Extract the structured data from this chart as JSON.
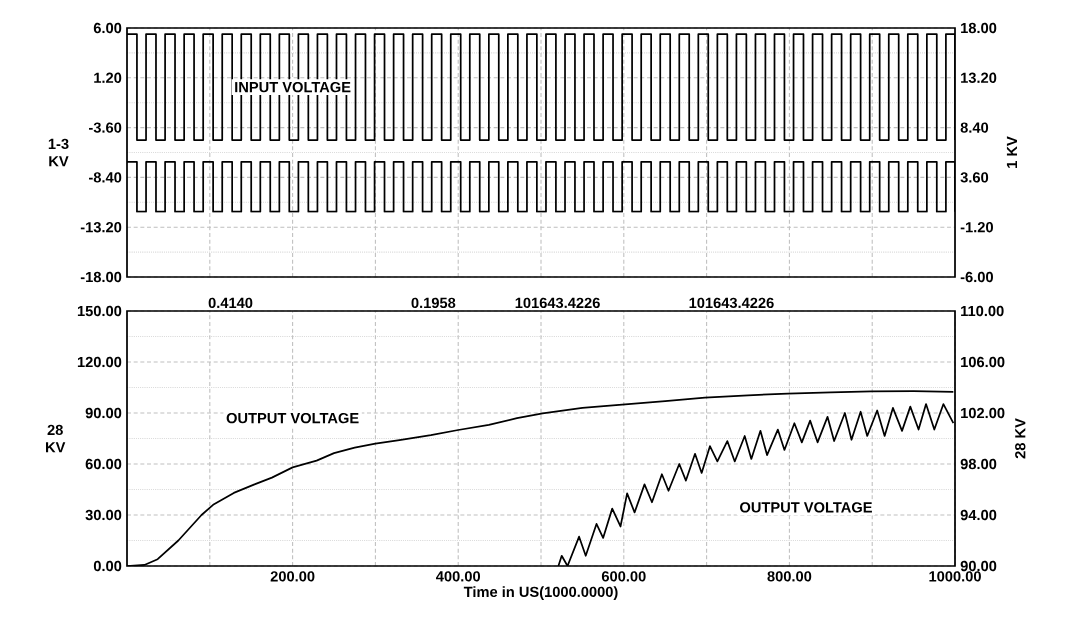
{
  "chart_data": [
    {
      "type": "step",
      "ylabel": "1-3 KV",
      "y2label": "1 KV",
      "annotations": [
        "INPUT VOLTAGE"
      ],
      "xlim": [
        0,
        1000
      ],
      "xticks": [
        {
          "value": 100,
          "label": null
        },
        {
          "value": 200,
          "label": null
        },
        {
          "value": 300,
          "label": null
        },
        {
          "value": 400,
          "label": null
        },
        {
          "value": 500,
          "label": null
        },
        {
          "value": 600,
          "label": null
        },
        {
          "value": 700,
          "label": null
        },
        {
          "value": 800,
          "label": null
        },
        {
          "value": 900,
          "label": null
        }
      ],
      "ylim": [
        -18,
        6
      ],
      "yticks": [
        {
          "value": -18,
          "label": "-18.00"
        },
        {
          "value": -13.2,
          "label": "-13.20"
        },
        {
          "value": -8.4,
          "label": "-8.40"
        },
        {
          "value": -3.6,
          "label": "-3.60"
        },
        {
          "value": 1.2,
          "label": "1.20"
        },
        {
          "value": 6,
          "label": "6.00"
        }
      ],
      "y2lim": [
        -6,
        18
      ],
      "y2ticks": [
        {
          "value": -6,
          "label": "-6.00"
        },
        {
          "value": -1.2,
          "label": "-1.20"
        },
        {
          "value": 3.6,
          "label": "3.60"
        },
        {
          "value": 8.4,
          "label": "8.40"
        },
        {
          "value": 13.2,
          "label": "13.20"
        },
        {
          "value": 18,
          "label": "18.00"
        }
      ],
      "grid": true,
      "tick_labels": "y",
      "x": [
        0,
        12,
        23,
        35,
        46,
        58,
        69,
        81,
        92,
        104,
        115,
        127,
        138,
        150,
        161,
        173,
        184,
        196,
        207,
        219,
        230,
        242,
        253,
        265,
        276,
        288,
        299,
        311,
        322,
        334,
        345,
        357,
        368,
        380,
        391,
        403,
        414,
        426,
        437,
        449,
        460,
        472,
        483,
        495,
        506,
        518,
        529,
        541,
        552,
        564,
        575,
        587,
        598,
        610,
        621,
        633,
        644,
        656,
        667,
        679,
        690,
        702,
        713,
        725,
        736,
        748,
        759,
        771,
        782,
        794,
        805,
        817,
        828,
        840,
        851,
        863,
        874,
        886,
        897,
        909,
        920,
        932,
        943,
        955,
        966,
        978,
        989,
        1000
      ],
      "series": [
        {
          "color": "#000000",
          "axis": "y2",
          "values": [
            17.4,
            7.2,
            17.4,
            7.2,
            17.4,
            7.2,
            17.4,
            7.2,
            17.4,
            7.2,
            17.4,
            7.2,
            17.4,
            7.2,
            17.4,
            7.2,
            17.4,
            7.2,
            17.4,
            7.2,
            17.4,
            7.2,
            17.4,
            7.2,
            17.4,
            7.2,
            17.4,
            7.2,
            17.4,
            7.2,
            17.4,
            7.2,
            17.4,
            7.2,
            17.4,
            7.2,
            17.4,
            7.2,
            17.4,
            7.2,
            17.4,
            7.2,
            17.4,
            7.2,
            17.4,
            7.2,
            17.4,
            7.2,
            17.4,
            7.2,
            17.4,
            7.2,
            17.4,
            7.2,
            17.4,
            7.2,
            17.4,
            7.2,
            17.4,
            7.2,
            17.4,
            7.2,
            17.4,
            7.2,
            17.4,
            7.2,
            17.4,
            7.2,
            17.4,
            7.2,
            17.4,
            7.2,
            17.4,
            7.2,
            17.4,
            7.2,
            17.4,
            7.2,
            17.4,
            7.2,
            17.4,
            7.2,
            17.4,
            7.2,
            17.4,
            7.2,
            17.4,
            7.2
          ]
        },
        {
          "color": "#000000",
          "axis": "y",
          "values": [
            -6.9,
            -11.7,
            -6.9,
            -11.7,
            -6.9,
            -11.7,
            -6.9,
            -11.7,
            -6.9,
            -11.7,
            -6.9,
            -11.7,
            -6.9,
            -11.7,
            -6.9,
            -11.7,
            -6.9,
            -11.7,
            -6.9,
            -11.7,
            -6.9,
            -11.7,
            -6.9,
            -11.7,
            -6.9,
            -11.7,
            -6.9,
            -11.7,
            -6.9,
            -11.7,
            -6.9,
            -11.7,
            -6.9,
            -11.7,
            -6.9,
            -11.7,
            -6.9,
            -11.7,
            -6.9,
            -11.7,
            -6.9,
            -11.7,
            -6.9,
            -11.7,
            -6.9,
            -11.7,
            -6.9,
            -11.7,
            -6.9,
            -11.7,
            -6.9,
            -11.7,
            -6.9,
            -11.7,
            -6.9,
            -11.7,
            -6.9,
            -11.7,
            -6.9,
            -11.7,
            -6.9,
            -11.7,
            -6.9,
            -11.7,
            -6.9,
            -11.7,
            -6.9,
            -11.7,
            -6.9,
            -11.7,
            -6.9,
            -11.7,
            -6.9,
            -11.7,
            -6.9,
            -11.7,
            -6.9,
            -11.7,
            -6.9,
            -11.7,
            -6.9,
            -11.7,
            -6.9,
            -11.7,
            -6.9,
            -11.7,
            -6.9,
            -11.7
          ]
        }
      ]
    },
    {
      "type": "line",
      "xlabel": "Time in US(1000.0000)",
      "ylabel": "28 KV",
      "y2label": "28 KV",
      "annotations": [
        "0.4140",
        "0.1958",
        "101643.4226",
        "101643.4226",
        "OUTPUT VOLTAGE",
        "OUTPUT VOLTAGE"
      ],
      "xlim": [
        0,
        1000
      ],
      "xticks": [
        {
          "value": 100,
          "label": null
        },
        {
          "value": 200,
          "label": "200.00"
        },
        {
          "value": 300,
          "label": null
        },
        {
          "value": 400,
          "label": "400.00"
        },
        {
          "value": 500,
          "label": null
        },
        {
          "value": 600,
          "label": "600.00"
        },
        {
          "value": 700,
          "label": null
        },
        {
          "value": 800,
          "label": "800.00"
        },
        {
          "value": 900,
          "label": null
        },
        {
          "value": 1000,
          "label": "1000.00"
        }
      ],
      "ylim": [
        0,
        150
      ],
      "yticks": [
        {
          "value": 0,
          "label": "0.00"
        },
        {
          "value": 30,
          "label": "30.00"
        },
        {
          "value": 60,
          "label": "60.00"
        },
        {
          "value": 90,
          "label": "90.00"
        },
        {
          "value": 120,
          "label": "120.00"
        },
        {
          "value": 150,
          "label": "150.00"
        }
      ],
      "y2lim": [
        90,
        110
      ],
      "y2ticks": [
        {
          "value": 90,
          "label": "90.00"
        },
        {
          "value": 94,
          "label": "94.00"
        },
        {
          "value": 98,
          "label": "98.00"
        },
        {
          "value": 102,
          "label": "102.00"
        },
        {
          "value": 106,
          "label": "106.00"
        },
        {
          "value": 110,
          "label": "110.00"
        }
      ],
      "grid": true,
      "series": [
        {
          "color": "#000000",
          "axis": "y",
          "x": [
            0,
            21,
            37,
            62,
            90,
            104,
            129,
            154,
            175,
            200,
            229,
            250,
            275,
            300,
            329,
            367,
            400,
            437,
            471,
            502,
            550,
            598,
            650,
            698,
            750,
            798,
            850,
            899,
            950,
            998
          ],
          "values": [
            0,
            0.6,
            4,
            15,
            30,
            36,
            43,
            48,
            52,
            58,
            62,
            66.4,
            69.6,
            72,
            74,
            77,
            80,
            83,
            87,
            89.8,
            93,
            94.9,
            97,
            99,
            100.4,
            101.4,
            102.1,
            102.7,
            102.8,
            102.4
          ]
        },
        {
          "color": "#000000",
          "axis": "y2",
          "x": [
            521,
            525,
            532,
            546,
            554,
            567,
            575,
            586,
            596,
            604,
            613,
            625,
            634,
            646,
            654,
            667,
            675,
            686,
            694,
            704,
            713,
            725,
            734,
            746,
            754,
            765,
            773,
            786,
            794,
            806,
            815,
            825,
            834,
            846,
            854,
            867,
            875,
            886,
            894,
            906,
            915,
            925,
            936,
            946,
            956,
            965,
            975,
            986,
            998
          ],
          "values": [
            90,
            90.8,
            90,
            92.3,
            90.8,
            93.3,
            92.2,
            94.5,
            93.1,
            95.7,
            94.2,
            96.4,
            95,
            97.2,
            95.9,
            98,
            96.7,
            98.8,
            97.3,
            99.4,
            98.2,
            99.8,
            98.2,
            100.2,
            98.4,
            100.6,
            98.7,
            100.7,
            99.1,
            101.2,
            99.7,
            101.4,
            99.7,
            101.7,
            99.8,
            102,
            99.9,
            102.1,
            100.2,
            102.2,
            100.2,
            102.4,
            100.6,
            102.5,
            100.7,
            102.7,
            100.7,
            102.7,
            101.2
          ]
        }
      ]
    }
  ]
}
